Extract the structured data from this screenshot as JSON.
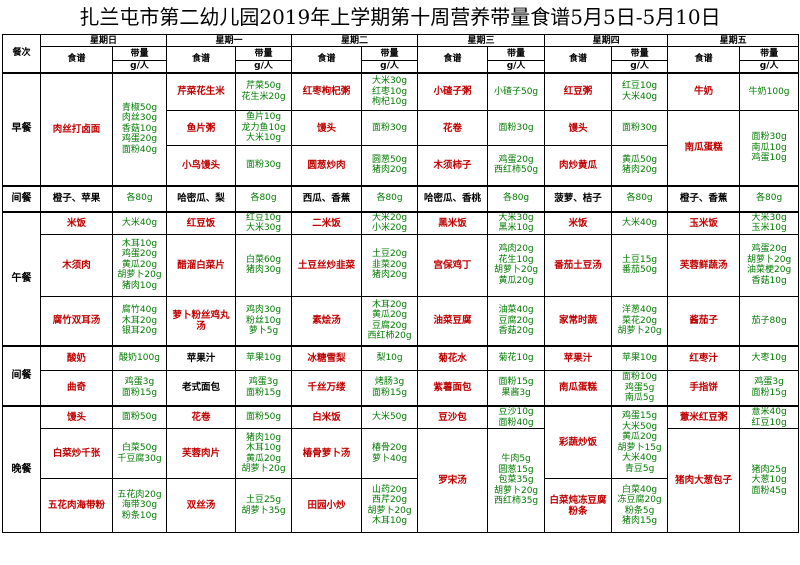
{
  "title": "扎兰屯市第二幼儿园2019年上学期第十周营养带量食谱5月5日-5月10日",
  "headers": {
    "meal_col": "餐次",
    "recipe": "食谱",
    "amount": "带量",
    "unit": "g/人",
    "days": [
      "星期日",
      "星期一",
      "星期二",
      "星期三",
      "星期四",
      "星期五"
    ]
  },
  "meals": {
    "breakfast": "早餐",
    "snack1": "间餐",
    "lunch": "午餐",
    "snack2": "间餐",
    "dinner": "晚餐"
  },
  "breakfast": {
    "sun": {
      "dish": "肉丝打卤面",
      "qty": [
        "青椒50g",
        "肉丝30g",
        "香菇10g",
        "鸡蛋20g",
        "面粉40g"
      ]
    },
    "mon": [
      {
        "dish": "芹菜花生米",
        "qty": [
          "芹菜50g",
          "花生米20g"
        ]
      },
      {
        "dish": "鱼片粥",
        "qty": [
          "鱼片10g",
          "龙力鱼10g",
          "大米10g"
        ]
      },
      {
        "dish": "小鸟馒头",
        "qty": [
          "面粉30g"
        ]
      }
    ],
    "tue": [
      {
        "dish": "红枣枸杞粥",
        "qty": [
          "大米30g",
          "红枣10g",
          "枸杞10g"
        ]
      },
      {
        "dish": "馒头",
        "qty": [
          "面粉30g"
        ]
      },
      {
        "dish": "圆葱炒肉",
        "qty": [
          "圆葱50g",
          "猪肉20g"
        ]
      }
    ],
    "wed": [
      {
        "dish": "小碴子粥",
        "qty": [
          "小碴子50g"
        ]
      },
      {
        "dish": "花卷",
        "qty": [
          "面粉30g"
        ]
      },
      {
        "dish": "木须柿子",
        "qty": [
          "鸡蛋20g",
          "西红柿50g"
        ]
      }
    ],
    "thu": [
      {
        "dish": "红豆粥",
        "qty": [
          "红豆10g",
          "大米40g"
        ]
      },
      {
        "dish": "馒头",
        "qty": [
          "面粉30g"
        ]
      },
      {
        "dish": "肉炒黄瓜",
        "qty": [
          "黄瓜50g",
          "猪肉20g"
        ]
      }
    ],
    "fri": [
      {
        "dish": "牛奶",
        "qty": [
          "牛奶100g"
        ]
      },
      {
        "dish": "南瓜蛋糕",
        "qty": [
          "面粉30g",
          "南瓜10g",
          "鸡蛋10g"
        ]
      }
    ]
  },
  "snack1": {
    "sun": {
      "dish": "橙子、苹果",
      "qty": [
        "各80g"
      ]
    },
    "mon": {
      "dish": "哈密瓜、梨",
      "qty": [
        "各80g"
      ]
    },
    "tue": {
      "dish": "西瓜、香蕉",
      "qty": [
        "各80g"
      ]
    },
    "wed": {
      "dish": "哈密瓜、香桃",
      "qty": [
        "各80g"
      ]
    },
    "thu": {
      "dish": "菠萝、桔子",
      "qty": [
        "各80g"
      ]
    },
    "fri": {
      "dish": "橙子、香蕉",
      "qty": [
        "各80g"
      ]
    }
  },
  "lunch": {
    "r1": [
      {
        "dish": "米饭",
        "qty": [
          "大米40g"
        ]
      },
      {
        "dish": "红豆饭",
        "qty": [
          "红豆10g",
          "大米30g"
        ]
      },
      {
        "dish": "二米饭",
        "qty": [
          "大米20g",
          "小米20g"
        ]
      },
      {
        "dish": "黑米饭",
        "qty": [
          "大米30g",
          "黑米10g"
        ]
      },
      {
        "dish": "米饭",
        "qty": [
          "大米40g"
        ]
      },
      {
        "dish": "玉米饭",
        "qty": [
          "大米30g",
          "玉米10g"
        ]
      }
    ],
    "r2": [
      {
        "dish": "木须肉",
        "qty": [
          "木耳10g",
          "鸡蛋20g",
          "黄瓜20g",
          "胡萝卜20g",
          "猪肉10g"
        ]
      },
      {
        "dish": "醋溜白菜片",
        "qty": [
          "白菜60g",
          "猪肉30g"
        ]
      },
      {
        "dish": "土豆丝炒韭菜",
        "qty": [
          "土豆20g",
          "韭菜20g",
          "猪肉20g"
        ]
      },
      {
        "dish": "宫保鸡丁",
        "qty": [
          "鸡肉20g",
          "花生10g",
          "胡萝卜20g",
          "黄瓜20g"
        ]
      },
      {
        "dish": "番茄土豆汤",
        "qty": [
          "土豆15g",
          "番茄50g"
        ]
      },
      {
        "dish": "芙蓉鲜蔬汤",
        "qty": [
          "鸡蛋20g",
          "胡萝卜20g",
          "油菜梗20g",
          "香菇10g"
        ]
      }
    ],
    "r3": [
      {
        "dish": "腐竹双耳汤",
        "qty": [
          "腐竹40g",
          "木耳20g",
          "银耳20g"
        ]
      },
      {
        "dish": "萝卜粉丝鸡丸汤",
        "qty": [
          "鸡肉30g",
          "粉丝10g",
          "萝卜5g"
        ]
      },
      {
        "dish": "素烩汤",
        "qty": [
          "木耳20g",
          "黄瓜20g",
          "豆腐20g",
          "西红柿20g"
        ]
      },
      {
        "dish": "油菜豆腐",
        "qty": [
          "油菜40g",
          "豆腐20g",
          "香菇20g"
        ]
      },
      {
        "dish": "家常时蔬",
        "qty": [
          "洋葱40g",
          "菜花20g",
          "胡萝卜20g"
        ]
      },
      {
        "dish": "酱茄子",
        "qty": [
          "茄子80g"
        ]
      }
    ]
  },
  "snack2": {
    "r1": [
      {
        "dish": "酸奶",
        "qty": [
          "酸奶100g"
        ]
      },
      {
        "dish": "苹果汁",
        "qty": [
          "苹果10g"
        ]
      },
      {
        "dish": "冰糖雪梨",
        "qty": [
          "梨10g"
        ]
      },
      {
        "dish": "菊花水",
        "qty": [
          "菊花10g"
        ]
      },
      {
        "dish": "苹果汁",
        "qty": [
          "苹果10g"
        ]
      },
      {
        "dish": "红枣汁",
        "qty": [
          "大枣10g"
        ]
      }
    ],
    "r2": [
      {
        "dish": "曲奇",
        "qty": [
          "鸡蛋3g",
          "面粉15g"
        ]
      },
      {
        "dish": "老式面包",
        "qty": [
          "鸡蛋3g",
          "面粉15g"
        ]
      },
      {
        "dish": "千丝万缕",
        "qty": [
          "烤肠3g",
          "面粉15g"
        ]
      },
      {
        "dish": "紫薯面包",
        "qty": [
          "面粉15g",
          "果酱3g"
        ]
      },
      {
        "dish": "南瓜蛋糕",
        "qty": [
          "面粉10g",
          "鸡蛋5g",
          "南瓜5g"
        ]
      },
      {
        "dish": "手指饼",
        "qty": [
          "鸡蛋3g",
          "面粉15g"
        ]
      }
    ]
  },
  "dinner": {
    "sun": [
      {
        "dish": "馒头",
        "qty": [
          "面粉50g"
        ]
      },
      {
        "dish": "白菜炒千张",
        "qty": [
          "白菜50g",
          "千豆腐30g"
        ]
      },
      {
        "dish": "五花肉海带粉",
        "qty": [
          "五花肉20g",
          "海带30g",
          "粉条10g"
        ]
      }
    ],
    "mon": [
      {
        "dish": "花卷",
        "qty": [
          "面粉50g"
        ]
      },
      {
        "dish": "芙蓉肉片",
        "qty": [
          "猪肉10g",
          "木耳10g",
          "黄瓜20g",
          "胡萝卜20g"
        ]
      },
      {
        "dish": "双丝汤",
        "qty": [
          "土豆25g",
          "胡萝卜35g"
        ]
      }
    ],
    "tue": [
      {
        "dish": "白米饭",
        "qty": [
          "大米50g"
        ]
      },
      {
        "dish": "椿骨萝卜汤",
        "qty": [
          "椿骨20g",
          "萝卜40g"
        ]
      },
      {
        "dish": "田园小炒",
        "qty": [
          "山药20g",
          "西芹20g",
          "胡萝卜20g",
          "木耳10g"
        ]
      }
    ],
    "wed": [
      {
        "dish": "豆沙包",
        "qty": [
          "豆沙10g",
          "面粉40g"
        ]
      },
      {
        "dish": "罗宋汤",
        "qty": [
          "牛肉5g",
          "圆葱15g",
          "包菜35g",
          "胡萝卜20g",
          "西红柿35g"
        ]
      }
    ],
    "thu": [
      {
        "dish": "彩蔬炒饭",
        "qty": [
          "鸡蛋15g",
          "大米50g",
          "黄瓜20g",
          "胡萝卜15g",
          "大米40g",
          "青豆5g"
        ]
      },
      {
        "dish": "白菜炖冻豆腐粉条",
        "qty": [
          "白菜40g",
          "冻豆腐20g",
          "粉条5g",
          "猪肉15g"
        ]
      }
    ],
    "fri": [
      {
        "dish": "薏米红豆粥",
        "qty": [
          "薏米40g",
          "红豆10g"
        ]
      },
      {
        "dish": "猪肉大葱包子",
        "qty": [
          "猪肉25g",
          "大葱10g",
          "面粉45g"
        ]
      }
    ]
  }
}
